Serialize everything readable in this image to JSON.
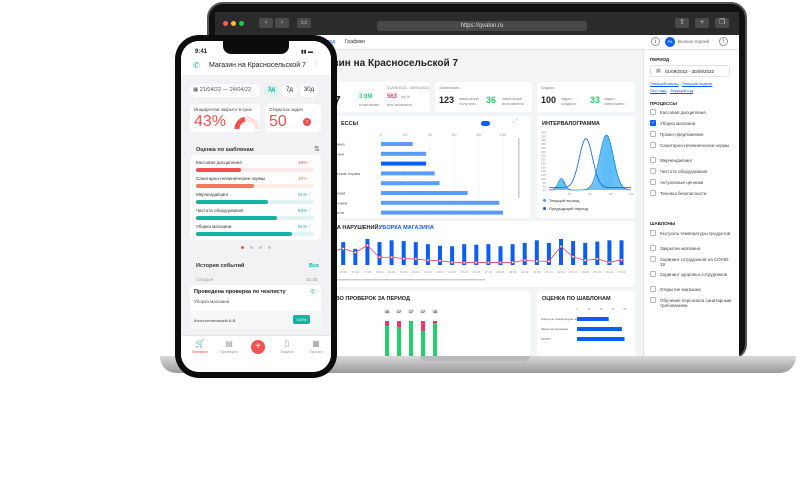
{
  "browser": {
    "url": "https://qvalon.ru"
  },
  "nav": {
    "item1": "вод",
    "item2": "Графики",
    "user": "Волков Сергей",
    "avatar": "РА"
  },
  "dashboard": {
    "title": "азин на Красносельской 7",
    "kpi": [
      {
        "label": "рки",
        "range": "01/09/2021- 30/09/2021",
        "value": "567",
        "v2": "3 0М",
        "v2_label": "в магазине",
        "v3": "563",
        "v3_suffix": "на %",
        "v3_label": "вне магазина"
      },
      {
        "label": "Замечания",
        "value": "123",
        "value_label": "замечаний получено",
        "v2": "36",
        "v2_label": "замечаний исправлено"
      },
      {
        "label": "Задачи",
        "value": "100",
        "value_label": "задач создано",
        "v2": "33",
        "v2_label": "задач завершено"
      }
    ],
    "processes": {
      "title": "ЕССЫ",
      "ticks": [
        "0",
        "20",
        "40",
        "60",
        "80",
        "100"
      ],
      "labels": [
        "я дисциплина",
        "предложения",
        "магазина",
        "-гигиенические нормы",
        "дайзинг",
        "оборудования",
        "льные ценники",
        "безопасности"
      ],
      "values": [
        26,
        37,
        37,
        44,
        48,
        71,
        97,
        100
      ],
      "highlight": 2
    },
    "interval": {
      "title": "ИНТЕРВАЛОГРАММА",
      "yticks": [
        "340",
        "320",
        "300",
        "280",
        "260",
        "240",
        "220",
        "200",
        "180",
        "160",
        "140",
        "120",
        "100",
        "80",
        "60",
        "40"
      ],
      "xticks": [
        "25",
        "50",
        "75",
        "100"
      ],
      "legend": [
        "Текущий период",
        "Предыдущий период"
      ]
    },
    "dynamics": {
      "title": "АМИКА НАРУШЕНИЙ:",
      "subtitle": "УБОРКА МАГАЗИНА",
      "dates": [
        "03",
        "14.03",
        "15.03",
        "16.03",
        "17.03",
        "18.03",
        "19.03",
        "20.03",
        "21.03",
        "22.03",
        "23.03",
        "24.03",
        "25.03",
        "26.03",
        "27.03",
        "28.03",
        "29.03",
        "30.03",
        "31.03",
        "01.04",
        "02.04",
        "03.04",
        "04.04",
        "05.04",
        "06.04",
        "07.04"
      ],
      "bars": [
        95,
        88,
        88,
        62,
        100,
        88,
        95,
        92,
        88,
        80,
        74,
        72,
        80,
        78,
        80,
        72,
        80,
        85,
        95,
        85,
        100,
        92,
        85,
        90,
        95,
        95
      ],
      "line": [
        5,
        52,
        65,
        48,
        80,
        26,
        26,
        20,
        18,
        12,
        10,
        3,
        2,
        2,
        2,
        2,
        3,
        12,
        8,
        8,
        75,
        28,
        12,
        18,
        3,
        15
      ]
    },
    "checks": {
      "title": "ЧЕСТВО ПРОВЕРОК ЗА ПЕРИОД",
      "labels": [
        "16",
        "17",
        "17",
        "17",
        "18"
      ]
    },
    "templates": {
      "title": "ОЦЕНКА ПО ШАБЛОНАМ",
      "ticks": [
        "0",
        "20",
        "40",
        "60",
        "80"
      ],
      "labels": [
        "Контроль температуры пищи",
        "Закрытие магазина",
        "COVID"
      ],
      "values": [
        60,
        85,
        90
      ]
    }
  },
  "filters": {
    "period_title": "ПЕРИОД",
    "period_value": "01/09/2022 - 30/09/2022",
    "quick": [
      "Текущий месяц",
      "Текущая неделя",
      "Пол года",
      "Текущий год"
    ],
    "processes_title": "ПРОЦЕССЫ",
    "processes": [
      "Кассовая дисциплина",
      "Уборка магазина",
      "Промо-предложения",
      "Санитарно-гигиенические нормы",
      "Мерчендайзинг",
      "Чистота оборудования",
      "Актуальные ценники",
      "Техника безопасности"
    ],
    "processes_checked": 1,
    "templates_title": "ШАБЛОНЫ",
    "templates": [
      "Ккотроль температуры продуктов",
      "Закрытие магазина",
      "Скрининг сотрудников на COVID-19",
      "Скрининг здоровья сотрудников",
      "Открытие магазина",
      "Обучение персонала санитарным требованиям"
    ]
  },
  "phone": {
    "time": "9:41",
    "title": "Магазин на Красносельской 7",
    "date_range": "21/04/22 — 24/04/22",
    "periods": [
      "3д",
      "7д",
      "30д"
    ],
    "incidents_label": "Инцидентов закрыто в срок",
    "incidents_value": "43%",
    "incidents_percent": 43,
    "tasks_label": "Открытых задач",
    "tasks_value": "50",
    "templates_title": "Оценка по шаблонам",
    "templates": [
      {
        "name": "Кассовая дисциплина",
        "value": "38%",
        "pct": 38,
        "color": "#f0524f"
      },
      {
        "name": "Санитарно-гигиенические нормы",
        "value": "49%",
        "pct": 49,
        "color": "#f4795a"
      },
      {
        "name": "Мерчендайзинг",
        "value": "61%",
        "pct": 61,
        "color": "#15b3a3"
      },
      {
        "name": "Чистота оборудования",
        "value": "69%",
        "pct": 69,
        "color": "#15b3a3"
      },
      {
        "name": "Уборка магазина",
        "value": "81%",
        "pct": 81,
        "color": "#15b3a3"
      }
    ],
    "history_title": "История событий",
    "history_all": "Все",
    "event": {
      "day": "Сегодня",
      "time": "15:30",
      "title": "Проведена проверка по чеклисту",
      "subtitle": "Уборка магазина",
      "author": "Константиновский А.В.",
      "badge": "100%"
    },
    "tabs": [
      "Магазин",
      "Проверки",
      "",
      "Задачи",
      "Прочее"
    ]
  },
  "colors": {
    "accent": "#0a5ef5",
    "phone_accent": "#f0524f",
    "teal": "#15b3a3",
    "green": "#22d16b",
    "pink": "#f0376a"
  }
}
